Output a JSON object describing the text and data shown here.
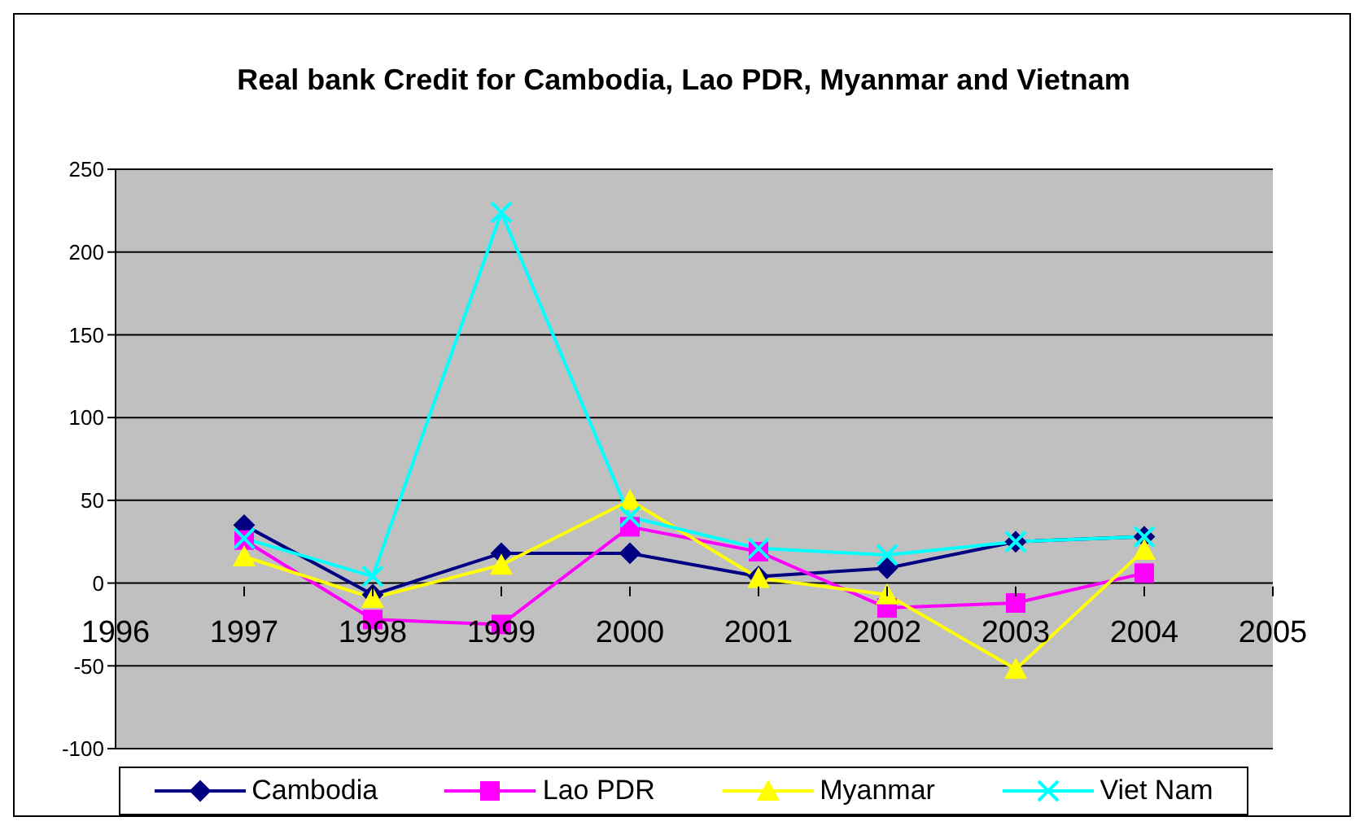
{
  "chart_data": {
    "type": "line",
    "title": "Real bank Credit for Cambodia, Lao PDR, Myanmar and Vietnam",
    "x": [
      1997,
      1998,
      1999,
      2000,
      2001,
      2002,
      2003,
      2004
    ],
    "xlim": [
      1996,
      2005
    ],
    "xticks": [
      1996,
      1997,
      1998,
      1999,
      2000,
      2001,
      2002,
      2003,
      2004,
      2005
    ],
    "ylim": [
      -100,
      250
    ],
    "yticks": [
      -100,
      -50,
      0,
      50,
      100,
      150,
      200,
      250
    ],
    "grid": "y",
    "legend": "bottom",
    "series": [
      {
        "name": "Cambodia",
        "color": "#000080",
        "marker": "diamond",
        "values": [
          35,
          -7,
          18,
          18,
          4,
          9,
          25,
          28
        ]
      },
      {
        "name": "Lao PDR",
        "color": "#ff00ff",
        "marker": "square",
        "values": [
          26,
          -22,
          -25,
          34,
          19,
          -15,
          -12,
          6
        ]
      },
      {
        "name": "Myanmar",
        "color": "#ffff00",
        "marker": "triangle",
        "values": [
          16,
          -9,
          11,
          50,
          3,
          -7,
          -52,
          20
        ]
      },
      {
        "name": "Viet Nam",
        "color": "#00ffff",
        "marker": "cross",
        "values": [
          27,
          4,
          224,
          40,
          21,
          17,
          25,
          28
        ]
      }
    ]
  }
}
